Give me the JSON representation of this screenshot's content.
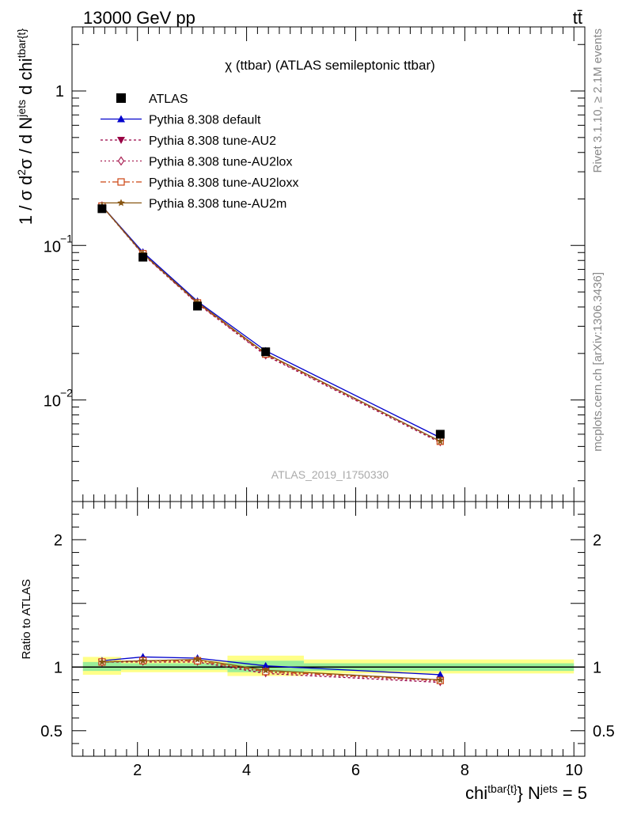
{
  "header": {
    "left": "13000 GeV pp",
    "right": "tt̄",
    "side_top": "Rivet 3.1.10, ≥ 2.1M events",
    "side_bottom": "mcplots.cern.ch [arXiv:1306.3436]"
  },
  "chart_data": [
    {
      "type": "line",
      "panel": "main",
      "title": "χ (ttbar) (ATLAS semileptonic ttbar)",
      "watermark": "ATLAS_2019_I1750330",
      "ylabel": "1 / σ d²σ / d N^jets d chi^tbar{t}",
      "yscale": "log",
      "ylim": [
        0.0022,
        2.6
      ],
      "xlim": [
        0.8,
        10.2
      ],
      "yticks": [
        {
          "v": 1,
          "label": "1"
        },
        {
          "v": 0.1,
          "label": "10",
          "exp": "−1"
        },
        {
          "v": 0.01,
          "label": "10",
          "exp": "−2"
        }
      ],
      "x": [
        1.35,
        2.1,
        3.1,
        4.35,
        7.55
      ],
      "data": {
        "name": "ATLAS",
        "values": [
          0.173,
          0.084,
          0.0405,
          0.0205,
          0.006
        ]
      },
      "series": [
        {
          "name": "Pythia 8.308 default",
          "color": "#0000cc",
          "dash": "",
          "marker": "triangle-up",
          "values": [
            0.18,
            0.0905,
            0.0435,
            0.0208,
            0.0057
          ]
        },
        {
          "name": "Pythia 8.308 tune-AU2",
          "color": "#990044",
          "dash": "3,3",
          "marker": "triangle-down",
          "values": [
            0.18,
            0.0875,
            0.042,
            0.0194,
            0.0053
          ]
        },
        {
          "name": "Pythia 8.308 tune-AU2lox",
          "color": "#aa2255",
          "dash": "2,3",
          "marker": "diamond",
          "values": [
            0.18,
            0.088,
            0.0423,
            0.0196,
            0.0054
          ]
        },
        {
          "name": "Pythia 8.308 tune-AU2loxx",
          "color": "#cc4411",
          "dash": "7,3,2,3",
          "marker": "square-open",
          "values": [
            0.18,
            0.0885,
            0.0425,
            0.0198,
            0.0054
          ]
        },
        {
          "name": "Pythia 8.308 tune-AU2m",
          "color": "#885511",
          "dash": "",
          "marker": "star",
          "values": [
            0.18,
            0.0885,
            0.0428,
            0.02,
            0.0054
          ]
        }
      ]
    },
    {
      "type": "line",
      "panel": "ratio",
      "ylabel": "Ratio to ATLAS",
      "xlabel": "chi^tbar{t} N^jets = 5",
      "ylim": [
        0.3,
        2.3
      ],
      "xlim": [
        0.8,
        10.2
      ],
      "yticks": [
        {
          "v": 2,
          "label": "2"
        },
        {
          "v": 1,
          "label": "1"
        },
        {
          "v": 0.5,
          "label": "0.5"
        }
      ],
      "xticks": [
        2,
        4,
        6,
        8,
        10
      ],
      "x": [
        1.35,
        2.1,
        3.1,
        4.35,
        7.55
      ],
      "bands": [
        {
          "x0": 1.0,
          "x1": 1.7,
          "yellow": [
            0.94,
            1.08
          ],
          "green": [
            0.97,
            1.04
          ]
        },
        {
          "x0": 1.7,
          "x1": 3.65,
          "yellow": [
            0.96,
            1.05
          ],
          "green": [
            0.98,
            1.03
          ]
        },
        {
          "x0": 3.65,
          "x1": 5.05,
          "yellow": [
            0.93,
            1.09
          ],
          "green": [
            0.96,
            1.05
          ]
        },
        {
          "x0": 5.05,
          "x1": 10.0,
          "yellow": [
            0.95,
            1.06
          ],
          "green": [
            0.97,
            1.03
          ]
        }
      ],
      "series": [
        {
          "name": "Pythia 8.308 default",
          "color": "#0000cc",
          "dash": "",
          "marker": "triangle-up",
          "values": [
            1.05,
            1.08,
            1.07,
            1.01,
            0.94
          ]
        },
        {
          "name": "Pythia 8.308 tune-AU2",
          "color": "#990044",
          "dash": "3,3",
          "marker": "triangle-down",
          "values": [
            1.04,
            1.04,
            1.04,
            0.95,
            0.88
          ]
        },
        {
          "name": "Pythia 8.308 tune-AU2lox",
          "color": "#aa2255",
          "dash": "2,3",
          "marker": "diamond",
          "values": [
            1.04,
            1.05,
            1.05,
            0.96,
            0.89
          ]
        },
        {
          "name": "Pythia 8.308 tune-AU2loxx",
          "color": "#cc4411",
          "dash": "7,3,2,3",
          "marker": "square-open",
          "values": [
            1.04,
            1.05,
            1.05,
            0.965,
            0.895
          ]
        },
        {
          "name": "Pythia 8.308 tune-AU2m",
          "color": "#885511",
          "dash": "",
          "marker": "star",
          "values": [
            1.04,
            1.05,
            1.06,
            0.975,
            0.9
          ]
        }
      ]
    }
  ]
}
